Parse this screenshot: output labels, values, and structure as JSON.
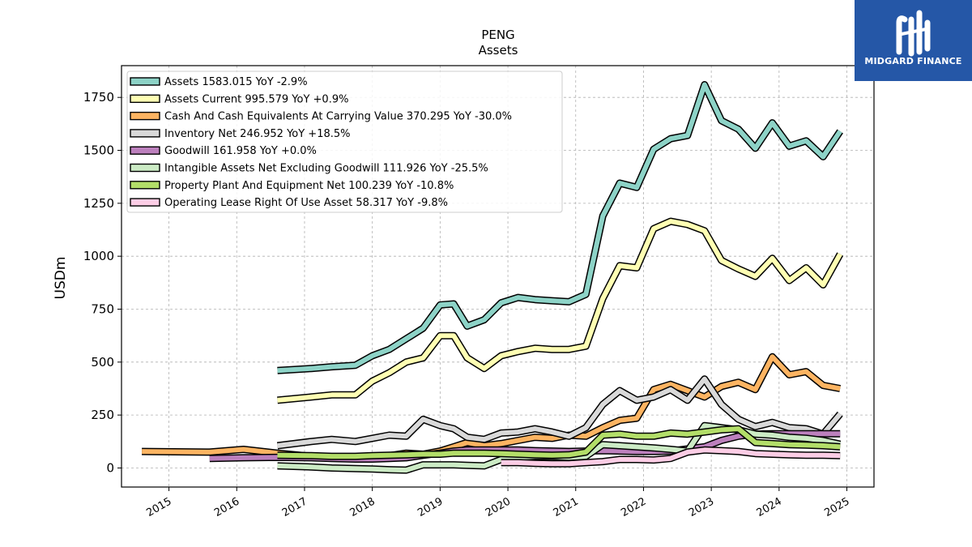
{
  "brand": {
    "name": "MIDGARD FINANCE",
    "color": "#2557a7"
  },
  "chart_data": {
    "type": "line",
    "title": "PENG",
    "subtitle": "Assets",
    "ylabel": "USDm",
    "xlabel": "",
    "ylim": [
      -90,
      1900
    ],
    "xlim": [
      2014.3,
      2025.4
    ],
    "yticks": [
      0,
      250,
      500,
      750,
      1000,
      1250,
      1500,
      1750
    ],
    "xticks": [
      "2015",
      "2016",
      "2017",
      "2018",
      "2019",
      "2020",
      "2021",
      "2022",
      "2023",
      "2024",
      "2025"
    ],
    "grid": true,
    "legend_position": "top-left",
    "series": [
      {
        "name": "Assets",
        "legend": "Assets  1583.015 YoY -2.9%",
        "color": "#8dd3c7",
        "points": [
          [
            2016.6,
            460
          ],
          [
            2017.1,
            470
          ],
          [
            2017.4,
            478
          ],
          [
            2017.75,
            485
          ],
          [
            2018.0,
            530
          ],
          [
            2018.25,
            560
          ],
          [
            2018.5,
            610
          ],
          [
            2018.75,
            660
          ],
          [
            2019.0,
            770
          ],
          [
            2019.2,
            775
          ],
          [
            2019.4,
            670
          ],
          [
            2019.65,
            700
          ],
          [
            2019.9,
            780
          ],
          [
            2020.15,
            805
          ],
          [
            2020.4,
            795
          ],
          [
            2020.65,
            790
          ],
          [
            2020.9,
            785
          ],
          [
            2021.15,
            820
          ],
          [
            2021.4,
            1190
          ],
          [
            2021.65,
            1345
          ],
          [
            2021.9,
            1325
          ],
          [
            2022.15,
            1505
          ],
          [
            2022.4,
            1555
          ],
          [
            2022.65,
            1570
          ],
          [
            2022.9,
            1810
          ],
          [
            2023.15,
            1640
          ],
          [
            2023.4,
            1600
          ],
          [
            2023.65,
            1510
          ],
          [
            2023.9,
            1630
          ],
          [
            2024.15,
            1520
          ],
          [
            2024.4,
            1545
          ],
          [
            2024.65,
            1470
          ],
          [
            2024.9,
            1590
          ]
        ]
      },
      {
        "name": "Assets Current",
        "legend": "Assets Current  995.579 YoY +0.9%",
        "color": "#ffffb3",
        "points": [
          [
            2016.6,
            320
          ],
          [
            2017.1,
            335
          ],
          [
            2017.4,
            345
          ],
          [
            2017.75,
            345
          ],
          [
            2018.0,
            410
          ],
          [
            2018.25,
            450
          ],
          [
            2018.5,
            500
          ],
          [
            2018.75,
            520
          ],
          [
            2019.0,
            625
          ],
          [
            2019.2,
            625
          ],
          [
            2019.4,
            520
          ],
          [
            2019.65,
            470
          ],
          [
            2019.9,
            530
          ],
          [
            2020.15,
            550
          ],
          [
            2020.4,
            565
          ],
          [
            2020.65,
            560
          ],
          [
            2020.9,
            560
          ],
          [
            2021.15,
            575
          ],
          [
            2021.4,
            800
          ],
          [
            2021.65,
            955
          ],
          [
            2021.9,
            945
          ],
          [
            2022.15,
            1130
          ],
          [
            2022.4,
            1165
          ],
          [
            2022.65,
            1150
          ],
          [
            2022.9,
            1120
          ],
          [
            2023.15,
            980
          ],
          [
            2023.4,
            940
          ],
          [
            2023.65,
            905
          ],
          [
            2023.9,
            990
          ],
          [
            2024.15,
            885
          ],
          [
            2024.4,
            945
          ],
          [
            2024.65,
            865
          ],
          [
            2024.9,
            1010
          ]
        ]
      },
      {
        "name": "Cash And Cash Equivalents At Carrying Value",
        "legend": "Cash And Cash Equivalents At Carrying Value  370.295 YoY -30.0%",
        "color": "#fdb462",
        "points": [
          [
            2014.6,
            78
          ],
          [
            2015.6,
            75
          ],
          [
            2016.1,
            88
          ],
          [
            2016.6,
            70
          ],
          [
            2017.1,
            55
          ],
          [
            2017.4,
            50
          ],
          [
            2017.75,
            50
          ],
          [
            2018.0,
            50
          ],
          [
            2018.25,
            58
          ],
          [
            2018.5,
            70
          ],
          [
            2018.75,
            65
          ],
          [
            2019.0,
            80
          ],
          [
            2019.2,
            100
          ],
          [
            2019.4,
            120
          ],
          [
            2019.65,
            105
          ],
          [
            2019.9,
            115
          ],
          [
            2020.15,
            130
          ],
          [
            2020.4,
            145
          ],
          [
            2020.65,
            140
          ],
          [
            2020.9,
            155
          ],
          [
            2021.15,
            150
          ],
          [
            2021.4,
            190
          ],
          [
            2021.65,
            225
          ],
          [
            2021.9,
            235
          ],
          [
            2022.15,
            370
          ],
          [
            2022.4,
            395
          ],
          [
            2022.65,
            365
          ],
          [
            2022.9,
            335
          ],
          [
            2023.15,
            385
          ],
          [
            2023.4,
            405
          ],
          [
            2023.65,
            370
          ],
          [
            2023.9,
            525
          ],
          [
            2024.15,
            440
          ],
          [
            2024.4,
            455
          ],
          [
            2024.65,
            390
          ],
          [
            2024.9,
            375
          ]
        ]
      },
      {
        "name": "Inventory Net",
        "legend": "Inventory Net  246.952 YoY +18.5%",
        "color": "#d9d9d9",
        "points": [
          [
            2016.6,
            105
          ],
          [
            2017.1,
            125
          ],
          [
            2017.4,
            135
          ],
          [
            2017.75,
            125
          ],
          [
            2018.0,
            140
          ],
          [
            2018.25,
            155
          ],
          [
            2018.5,
            150
          ],
          [
            2018.75,
            230
          ],
          [
            2019.0,
            200
          ],
          [
            2019.2,
            185
          ],
          [
            2019.4,
            145
          ],
          [
            2019.65,
            135
          ],
          [
            2019.9,
            165
          ],
          [
            2020.15,
            170
          ],
          [
            2020.4,
            185
          ],
          [
            2020.65,
            170
          ],
          [
            2020.9,
            150
          ],
          [
            2021.15,
            190
          ],
          [
            2021.4,
            300
          ],
          [
            2021.65,
            365
          ],
          [
            2021.9,
            320
          ],
          [
            2022.15,
            335
          ],
          [
            2022.4,
            370
          ],
          [
            2022.65,
            320
          ],
          [
            2022.9,
            420
          ],
          [
            2023.15,
            300
          ],
          [
            2023.4,
            230
          ],
          [
            2023.65,
            195
          ],
          [
            2023.9,
            215
          ],
          [
            2024.15,
            190
          ],
          [
            2024.4,
            185
          ],
          [
            2024.65,
            160
          ],
          [
            2024.9,
            255
          ]
        ]
      },
      {
        "name": "Goodwill",
        "legend": "Goodwill  161.958 YoY +0.0%",
        "color": "#bc80bd",
        "points": [
          [
            2015.6,
            45
          ],
          [
            2016.1,
            48
          ],
          [
            2016.6,
            50
          ],
          [
            2017.1,
            48
          ],
          [
            2017.4,
            45
          ],
          [
            2017.75,
            42
          ],
          [
            2018.0,
            42
          ],
          [
            2018.25,
            45
          ],
          [
            2018.5,
            48
          ],
          [
            2018.75,
            60
          ],
          [
            2019.0,
            70
          ],
          [
            2019.2,
            80
          ],
          [
            2019.4,
            85
          ],
          [
            2019.65,
            85
          ],
          [
            2019.9,
            85
          ],
          [
            2020.15,
            85
          ],
          [
            2020.4,
            82
          ],
          [
            2020.65,
            80
          ],
          [
            2020.9,
            78
          ],
          [
            2021.15,
            80
          ],
          [
            2021.4,
            82
          ],
          [
            2021.65,
            80
          ],
          [
            2021.9,
            78
          ],
          [
            2022.15,
            78
          ],
          [
            2022.4,
            80
          ],
          [
            2022.65,
            90
          ],
          [
            2022.9,
            100
          ],
          [
            2023.15,
            130
          ],
          [
            2023.4,
            150
          ],
          [
            2023.65,
            160
          ],
          [
            2023.9,
            162
          ],
          [
            2024.15,
            162
          ],
          [
            2024.4,
            162
          ],
          [
            2024.65,
            162
          ],
          [
            2024.9,
            162
          ]
        ]
      },
      {
        "name": "Intangible Assets Net Excluding Goodwill",
        "legend": "Intangible Assets Net Excluding Goodwill  111.926 YoY -25.5%",
        "color": "#ccebc5",
        "points": [
          [
            2016.6,
            10
          ],
          [
            2017.1,
            5
          ],
          [
            2017.4,
            0
          ],
          [
            2017.75,
            -3
          ],
          [
            2018.0,
            -5
          ],
          [
            2018.25,
            -8
          ],
          [
            2018.5,
            -10
          ],
          [
            2018.75,
            15
          ],
          [
            2019.0,
            15
          ],
          [
            2019.2,
            15
          ],
          [
            2019.4,
            12
          ],
          [
            2019.65,
            10
          ],
          [
            2019.9,
            40
          ],
          [
            2020.15,
            50
          ],
          [
            2020.4,
            55
          ],
          [
            2020.65,
            55
          ],
          [
            2020.9,
            50
          ],
          [
            2021.15,
            55
          ],
          [
            2021.4,
            110
          ],
          [
            2021.65,
            105
          ],
          [
            2021.9,
            100
          ],
          [
            2022.15,
            95
          ],
          [
            2022.4,
            88
          ],
          [
            2022.65,
            80
          ],
          [
            2022.9,
            200
          ],
          [
            2023.15,
            190
          ],
          [
            2023.4,
            180
          ],
          [
            2023.65,
            160
          ],
          [
            2023.9,
            155
          ],
          [
            2024.15,
            145
          ],
          [
            2024.4,
            140
          ],
          [
            2024.65,
            130
          ],
          [
            2024.9,
            112
          ]
        ]
      },
      {
        "name": "Property Plant And Equipment Net",
        "legend": "Property Plant And Equipment Net  100.239 YoY -10.8%",
        "color": "#b3de69",
        "points": [
          [
            2016.6,
            60
          ],
          [
            2017.1,
            58
          ],
          [
            2017.4,
            55
          ],
          [
            2017.75,
            55
          ],
          [
            2018.0,
            58
          ],
          [
            2018.25,
            60
          ],
          [
            2018.5,
            62
          ],
          [
            2018.75,
            65
          ],
          [
            2019.0,
            65
          ],
          [
            2019.2,
            70
          ],
          [
            2019.4,
            70
          ],
          [
            2019.65,
            70
          ],
          [
            2019.9,
            68
          ],
          [
            2020.15,
            65
          ],
          [
            2020.4,
            62
          ],
          [
            2020.65,
            60
          ],
          [
            2020.9,
            62
          ],
          [
            2021.15,
            75
          ],
          [
            2021.4,
            155
          ],
          [
            2021.65,
            160
          ],
          [
            2021.9,
            150
          ],
          [
            2022.15,
            150
          ],
          [
            2022.4,
            165
          ],
          [
            2022.65,
            160
          ],
          [
            2022.9,
            170
          ],
          [
            2023.15,
            180
          ],
          [
            2023.4,
            185
          ],
          [
            2023.65,
            120
          ],
          [
            2023.9,
            115
          ],
          [
            2024.15,
            110
          ],
          [
            2024.4,
            108
          ],
          [
            2024.65,
            105
          ],
          [
            2024.9,
            100
          ]
        ]
      },
      {
        "name": "Operating Lease Right Of Use Asset",
        "legend": "Operating Lease Right Of Use Asset  58.317 YoY -9.8%",
        "color": "#fccde5",
        "points": [
          [
            2019.9,
            25
          ],
          [
            2020.15,
            25
          ],
          [
            2020.4,
            22
          ],
          [
            2020.65,
            20
          ],
          [
            2020.9,
            20
          ],
          [
            2021.15,
            25
          ],
          [
            2021.4,
            30
          ],
          [
            2021.65,
            40
          ],
          [
            2021.9,
            40
          ],
          [
            2022.15,
            38
          ],
          [
            2022.4,
            45
          ],
          [
            2022.65,
            75
          ],
          [
            2022.9,
            85
          ],
          [
            2023.15,
            82
          ],
          [
            2023.4,
            78
          ],
          [
            2023.65,
            68
          ],
          [
            2023.9,
            65
          ],
          [
            2024.15,
            62
          ],
          [
            2024.4,
            60
          ],
          [
            2024.65,
            60
          ],
          [
            2024.9,
            58
          ]
        ]
      }
    ]
  }
}
